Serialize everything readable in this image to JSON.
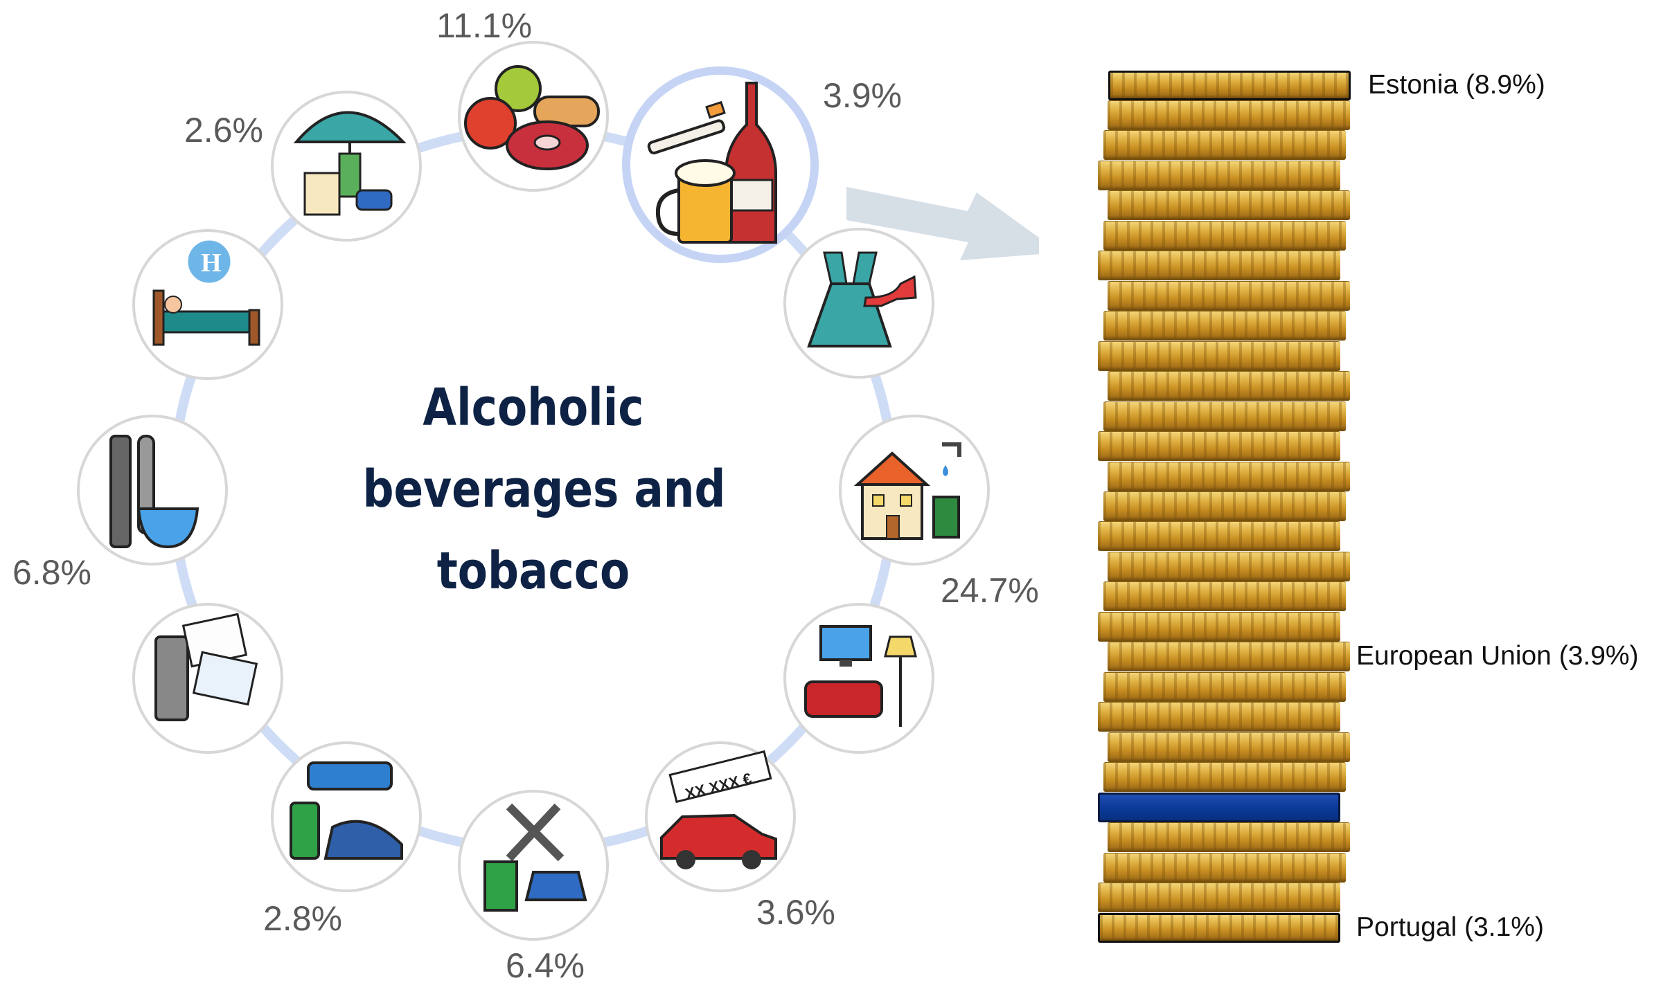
{
  "center_title": {
    "line1": "Alcoholic",
    "line2": "beverages and",
    "line3": "tobacco"
  },
  "categories": [
    {
      "icon": "food-icon",
      "share": "11.1%"
    },
    {
      "icon": "alcohol-tobacco-icon",
      "share": "3.9%",
      "highlighted": true
    },
    {
      "icon": "clothing-icon",
      "share": ""
    },
    {
      "icon": "housing-icon",
      "share": "24.7%"
    },
    {
      "icon": "furnishings-icon",
      "share": ""
    },
    {
      "icon": "car-price-tag-icon",
      "share": "3.6%"
    },
    {
      "icon": "repair-fuel-icon",
      "share": "6.4%"
    },
    {
      "icon": "transport-icon",
      "share": "2.8%"
    },
    {
      "icon": "communication-icon",
      "share": ""
    },
    {
      "icon": "restaurant-icon",
      "share": "6.8%"
    },
    {
      "icon": "hotel-icon",
      "share": ""
    },
    {
      "icon": "insurance-icon",
      "share": "2.6%"
    }
  ],
  "stack": {
    "top_label": "Estonia (8.9%)",
    "eu_label": "European Union (3.9%)",
    "bottom_label": "Portugal (3.1%)",
    "top_value": 8.9,
    "eu_value": 3.9,
    "bottom_value": 3.1
  },
  "colors": {
    "ring": "#cfdcf5",
    "highlight_ring": "#c5d4f5",
    "arrow": "#d6dee6",
    "title": "#0d2244",
    "eu_coin": "#0b3a9a",
    "coin_gold": "#e2b548"
  }
}
